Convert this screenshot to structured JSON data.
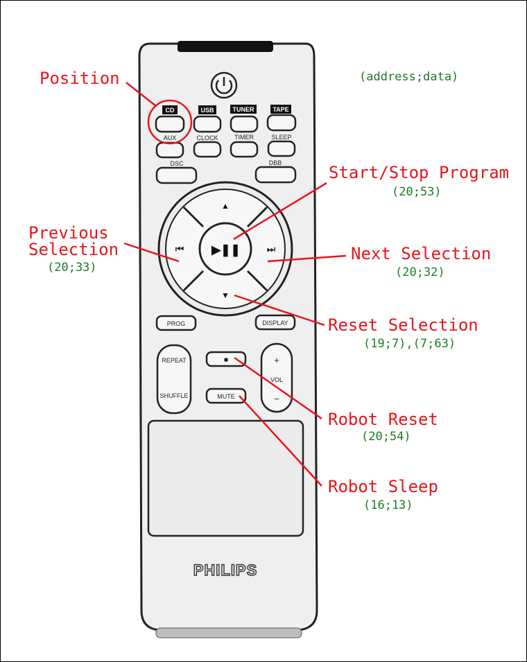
{
  "legend": "(address;data)",
  "remote": {
    "brand": "PHILIPS",
    "source_labels": [
      "CD",
      "USB",
      "TUNER",
      "TAPE"
    ],
    "row2_labels": [
      "AUX",
      "CLOCK",
      "TIMER",
      "SLEEP"
    ],
    "row3_labels": [
      "DSC",
      "DBB"
    ],
    "prog": "PROG",
    "display": "DISPLAY",
    "repeat": "REPEAT",
    "shuffle": "SHUFFLE",
    "mute": "MUTE",
    "vol": "VOL",
    "plus": "+",
    "minus": "−",
    "up": "▲",
    "down": "▼",
    "prev": "⏮",
    "next": "⏭",
    "playpause": "▶❚❚",
    "stop": "■"
  },
  "annotations": [
    {
      "id": "position",
      "label": "Position",
      "code": ""
    },
    {
      "id": "start-stop",
      "label": "Start/Stop Program",
      "code": "(20;53)"
    },
    {
      "id": "previous",
      "label": "Previous Selection",
      "code": "(20;33)"
    },
    {
      "id": "next",
      "label": "Next Selection",
      "code": "(20;32)"
    },
    {
      "id": "reset-selection",
      "label": "Reset Selection",
      "code": "(19;7),(7;63)"
    },
    {
      "id": "robot-reset",
      "label": "Robot Reset",
      "code": "(20;54)"
    },
    {
      "id": "robot-sleep",
      "label": "Robot Sleep",
      "code": "(16;13)"
    }
  ],
  "colors": {
    "annotation": "#e8141b",
    "code": "#1a7a25",
    "remote_body": "#efefef",
    "outline": "#222222"
  }
}
